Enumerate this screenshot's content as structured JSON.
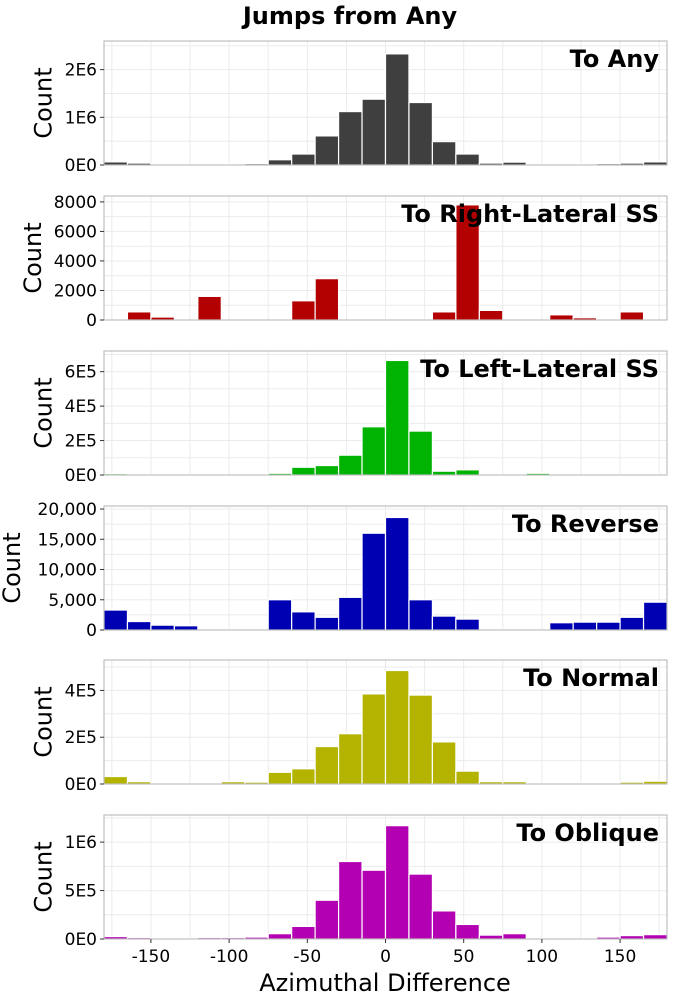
{
  "chart_data": {
    "type": "bar",
    "title": "Jumps from Any",
    "xlabel": "Azimuthal Difference",
    "ylabel": "Count",
    "xlim": [
      -180,
      180
    ],
    "bin_width": 15,
    "x": [
      -172.5,
      -157.5,
      -142.5,
      -127.5,
      -112.5,
      -97.5,
      -82.5,
      -67.5,
      -52.5,
      -37.5,
      -22.5,
      -7.5,
      7.5,
      22.5,
      37.5,
      52.5,
      67.5,
      82.5,
      97.5,
      112.5,
      127.5,
      142.5,
      157.5,
      172.5
    ],
    "x_ticks": [
      -150,
      -100,
      -50,
      0,
      50,
      100,
      150
    ],
    "x_tick_labels": [
      "-150",
      "-100",
      "-50",
      "0",
      "50",
      "100",
      "150"
    ],
    "grid": true,
    "panels": [
      {
        "name": "To Any",
        "color": "#3f3f3f",
        "ylim": [
          0,
          2600000
        ],
        "y_ticks": [
          0,
          1000000,
          2000000
        ],
        "y_tick_labels": [
          "0E0",
          "1E6",
          "2E6"
        ],
        "values": [
          65000,
          40000,
          25000,
          15000,
          20000,
          25000,
          30000,
          110000,
          230000,
          610000,
          1120000,
          1380000,
          2330000,
          1310000,
          490000,
          230000,
          40000,
          60000,
          20000,
          15000,
          25000,
          30000,
          40000,
          65000
        ]
      },
      {
        "name": "To Right-Lateral SS",
        "color": "#b30000",
        "ylim": [
          0,
          8400
        ],
        "y_ticks": [
          0,
          2000,
          4000,
          6000,
          8000
        ],
        "y_tick_labels": [
          "0",
          "2000",
          "4000",
          "6000",
          "8000"
        ],
        "values": [
          0,
          550,
          200,
          0,
          1600,
          0,
          0,
          0,
          1300,
          2800,
          0,
          60,
          80,
          30,
          550,
          7800,
          650,
          0,
          0,
          350,
          150,
          0,
          550,
          0
        ]
      },
      {
        "name": "To Left-Lateral SS",
        "color": "#00b300",
        "ylim": [
          0,
          720000
        ],
        "y_ticks": [
          0,
          200000,
          400000,
          600000
        ],
        "y_tick_labels": [
          "0E0",
          "2E5",
          "4E5",
          "6E5"
        ],
        "values": [
          8000,
          5000,
          4000,
          1500,
          1000,
          1000,
          4000,
          10000,
          45000,
          55000,
          115000,
          280000,
          665000,
          255000,
          22000,
          30000,
          3000,
          3000,
          10000,
          3000,
          1000,
          5000,
          4000,
          5000
        ]
      },
      {
        "name": "To Reverse",
        "color": "#0000b3",
        "ylim": [
          0,
          20500
        ],
        "y_ticks": [
          0,
          5000,
          10000,
          15000,
          20000
        ],
        "y_tick_labels": [
          "0",
          "5,000",
          "10,000",
          "15,000",
          "20,000"
        ],
        "values": [
          3300,
          1400,
          800,
          700,
          0,
          100,
          200,
          5000,
          3000,
          2100,
          5400,
          16000,
          18600,
          5000,
          2300,
          1800,
          0,
          100,
          0,
          1200,
          1300,
          1300,
          2100,
          4600
        ]
      },
      {
        "name": "To Normal",
        "color": "#b3b300",
        "ylim": [
          0,
          530000
        ],
        "y_ticks": [
          0,
          200000,
          400000
        ],
        "y_tick_labels": [
          "0E0",
          "2E5",
          "4E5"
        ],
        "values": [
          32000,
          10000,
          4000,
          2000,
          5000,
          10000,
          8000,
          50000,
          65000,
          160000,
          215000,
          385000,
          485000,
          380000,
          180000,
          55000,
          10000,
          10000,
          2000,
          2000,
          5000,
          5000,
          8000,
          12000
        ]
      },
      {
        "name": "To Oblique",
        "color": "#b300b3",
        "ylim": [
          0,
          1280000
        ],
        "y_ticks": [
          0,
          500000,
          1000000
        ],
        "y_tick_labels": [
          "0E0",
          "5E5",
          "1E6"
        ],
        "values": [
          25000,
          15000,
          10000,
          8000,
          15000,
          15000,
          20000,
          55000,
          130000,
          400000,
          800000,
          710000,
          1170000,
          670000,
          290000,
          150000,
          40000,
          55000,
          5000,
          5000,
          10000,
          20000,
          35000,
          45000
        ]
      }
    ]
  }
}
